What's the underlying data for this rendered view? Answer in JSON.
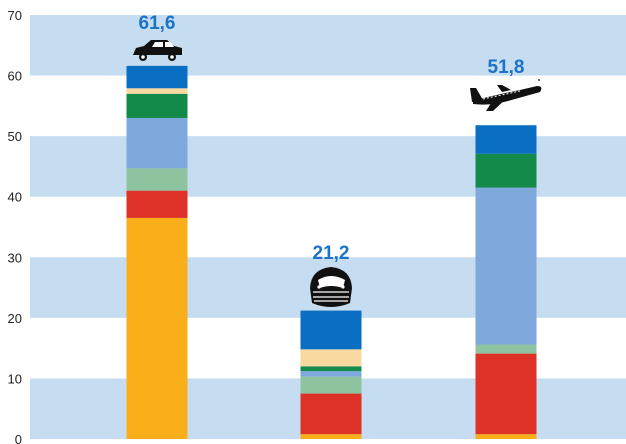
{
  "chart_data": {
    "type": "bar",
    "stacked": true,
    "categories": [
      "car",
      "train",
      "plane"
    ],
    "ylim": [
      0,
      70
    ],
    "y_ticks": [
      "0",
      "10",
      "20",
      "30",
      "40",
      "50",
      "60",
      "70"
    ],
    "grid": "alternating horizontal bands",
    "band_color": "#c6dcf0",
    "totals": [
      "61,6",
      "21,2",
      "51,8"
    ],
    "segment_colors": [
      "#f9ae1a",
      "#de3128",
      "#8ec3a0",
      "#7fa8dc",
      "#138a4a",
      "#fad9a0",
      "#0a6fc2"
    ],
    "series": [
      {
        "values": [
          36.5,
          0.8,
          0.8
        ]
      },
      {
        "values": [
          4.5,
          6.7,
          13.3
        ]
      },
      {
        "values": [
          3.7,
          2.8,
          1.5
        ]
      },
      {
        "values": [
          8.3,
          0.9,
          25.9
        ]
      },
      {
        "values": [
          4.0,
          0.8,
          5.6
        ]
      },
      {
        "values": [
          0.9,
          2.8,
          0
        ]
      },
      {
        "values": [
          3.7,
          6.4,
          4.7
        ]
      }
    ],
    "icons": [
      "car-icon",
      "train-icon",
      "plane-icon"
    ]
  }
}
